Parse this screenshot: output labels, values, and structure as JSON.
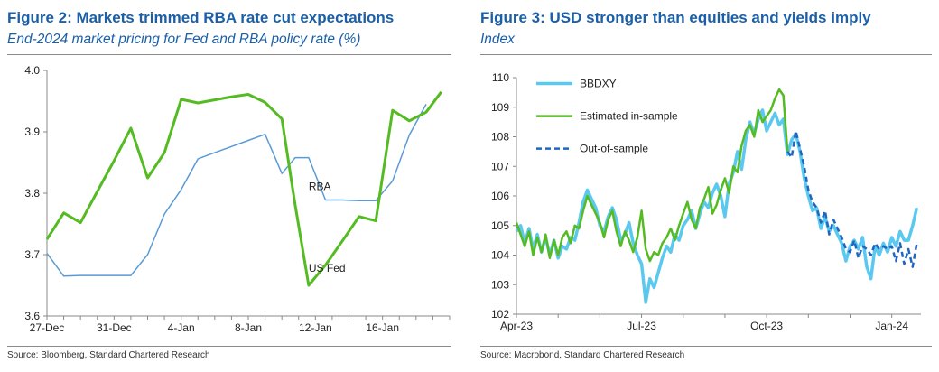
{
  "colors": {
    "title": "#1a5fa8",
    "blue": "#5b9bd5",
    "green": "#55bb22",
    "cyan": "#5bc8ef",
    "dark_blue": "#1f66c1"
  },
  "charts": [
    {
      "figure_title": "Figure 2: Markets trimmed RBA rate cut expectations",
      "subtitle": "End-2024 market pricing for Fed and RBA policy rate (%)",
      "source": "Source: Bloomberg, Standard Chartered Research"
    },
    {
      "figure_title": "Figure 3:  USD stronger than equities and yields imply",
      "subtitle": "Index",
      "source": "Source: Macrobond, Standard Chartered Research"
    }
  ],
  "chart_data": [
    {
      "type": "line",
      "title": "Figure 2: Markets trimmed RBA rate cut expectations",
      "subtitle": "End-2024 market pricing for Fed and RBA policy rate (%)",
      "xlabel": "",
      "ylabel": "",
      "x_tick_labels": [
        "27-Dec",
        "31-Dec",
        "4-Jan",
        "8-Jan",
        "12-Jan",
        "16-Jan"
      ],
      "x_tick_days": [
        0,
        4,
        8,
        12,
        16,
        20
      ],
      "ylim": [
        3.6,
        4.0
      ],
      "y_ticks": [
        "3.6",
        "3.7",
        "3.8",
        "3.9",
        "4.0"
      ],
      "y_tick_values": [
        3.6,
        3.7,
        3.8,
        3.9,
        4.0
      ],
      "grid": false,
      "series": [
        {
          "name": "RBA",
          "label": "RBA",
          "label_at": [
            15.6,
            3.805
          ],
          "color": "#5b9bd5",
          "x": [
            0,
            1,
            2,
            3,
            4,
            5,
            6,
            7,
            8,
            9,
            10,
            11,
            12,
            13,
            14,
            14.8,
            15.6,
            16.6,
            17.6,
            18.6,
            19.6,
            20.6,
            21.6,
            22.6
          ],
          "values": [
            3.702,
            3.665,
            3.666,
            3.666,
            3.666,
            3.666,
            3.7,
            3.766,
            3.806,
            3.856,
            3.866,
            3.876,
            3.886,
            3.896,
            3.832,
            3.858,
            3.858,
            3.789,
            3.789,
            3.788,
            3.788,
            3.82,
            3.895,
            3.945
          ]
        },
        {
          "name": "US Fed",
          "label": "US Fed",
          "label_at": [
            15.6,
            3.672
          ],
          "color": "#55bb22",
          "x": [
            0,
            1,
            2,
            3,
            4,
            5,
            6,
            7,
            8,
            9,
            10,
            11,
            12,
            13,
            14,
            14.8,
            15.6,
            16.6,
            17.6,
            18.6,
            19.6,
            20.6,
            21.6,
            22.6,
            23.5
          ],
          "values": [
            3.725,
            3.768,
            3.752,
            3.803,
            3.853,
            3.906,
            3.825,
            3.866,
            3.953,
            3.947,
            3.952,
            3.957,
            3.961,
            3.948,
            3.921,
            3.78,
            3.65,
            3.683,
            3.722,
            3.762,
            3.755,
            3.935,
            3.918,
            3.932,
            3.965
          ]
        }
      ]
    },
    {
      "type": "line",
      "title": "Figure 3:  USD stronger than equities and yields imply",
      "subtitle": "Index",
      "xlabel": "",
      "ylabel": "",
      "x_tick_labels": [
        "Apr-23",
        "Jul-23",
        "Oct-23",
        "Jan-24"
      ],
      "x_tick_months": [
        0,
        3,
        6,
        9
      ],
      "xlim_months": [
        0,
        9.7
      ],
      "ylim": [
        102,
        110
      ],
      "y_ticks": [
        "102",
        "103",
        "104",
        "105",
        "106",
        "107",
        "108",
        "109",
        "110"
      ],
      "y_tick_values": [
        102,
        103,
        104,
        105,
        106,
        107,
        108,
        109,
        110
      ],
      "grid": false,
      "legend_position": "top-left",
      "series": [
        {
          "name": "BBDXY",
          "label": "BBDXY",
          "color": "#5bc8ef",
          "dash": "solid",
          "x": [
            0,
            0.1,
            0.2,
            0.3,
            0.4,
            0.5,
            0.6,
            0.7,
            0.8,
            0.9,
            1.0,
            1.1,
            1.2,
            1.3,
            1.4,
            1.5,
            1.6,
            1.7,
            1.8,
            1.9,
            2.0,
            2.1,
            2.2,
            2.3,
            2.4,
            2.5,
            2.6,
            2.7,
            2.8,
            2.9,
            3.0,
            3.1,
            3.2,
            3.3,
            3.4,
            3.5,
            3.6,
            3.7,
            3.8,
            3.9,
            4.0,
            4.1,
            4.2,
            4.3,
            4.4,
            4.5,
            4.6,
            4.7,
            4.8,
            4.9,
            5.0,
            5.1,
            5.2,
            5.3,
            5.4,
            5.5,
            5.6,
            5.7,
            5.8,
            5.9,
            6.0,
            6.1,
            6.2,
            6.3,
            6.4,
            6.5,
            6.6,
            6.7,
            6.8,
            6.9,
            7.0,
            7.1,
            7.2,
            7.3,
            7.4,
            7.5,
            7.6,
            7.7,
            7.8,
            7.9,
            8.0,
            8.1,
            8.2,
            8.3,
            8.4,
            8.5,
            8.6,
            8.7,
            8.8,
            8.9,
            9.0,
            9.1,
            9.2,
            9.3,
            9.4,
            9.5,
            9.6
          ],
          "values": [
            104.8,
            105.0,
            104.4,
            104.9,
            104.2,
            104.7,
            104.1,
            104.6,
            104.0,
            104.5,
            103.9,
            104.3,
            104.2,
            104.6,
            104.5,
            105.1,
            105.8,
            106.2,
            105.9,
            105.6,
            105.0,
            104.8,
            105.3,
            105.6,
            105.2,
            104.5,
            104.7,
            105.1,
            104.4,
            104.0,
            103.7,
            102.4,
            103.2,
            102.9,
            103.4,
            103.9,
            104.3,
            104.1,
            104.7,
            104.5,
            105.0,
            105.2,
            105.5,
            104.9,
            105.4,
            105.8,
            105.6,
            106.1,
            106.4,
            106.0,
            105.3,
            106.4,
            106.8,
            107.5,
            106.9,
            107.9,
            108.5,
            108.1,
            108.6,
            108.9,
            108.2,
            108.5,
            108.8,
            108.4,
            108.6,
            107.4,
            107.9,
            108.1,
            107.5,
            106.6,
            106.0,
            105.5,
            105.6,
            104.9,
            105.3,
            104.8,
            105.0,
            104.7,
            104.4,
            103.8,
            104.3,
            104.5,
            104.2,
            104.6,
            103.6,
            103.2,
            104.3,
            104.0,
            104.4,
            104.1,
            104.6,
            104.3,
            104.8,
            104.5,
            104.5,
            105.0,
            105.6
          ]
        },
        {
          "name": "Estimated in-sample",
          "label": "Estimated in-sample",
          "color": "#55bb22",
          "dash": "solid",
          "x": [
            0,
            0.1,
            0.2,
            0.3,
            0.4,
            0.5,
            0.6,
            0.7,
            0.8,
            0.9,
            1.0,
            1.1,
            1.2,
            1.3,
            1.4,
            1.5,
            1.6,
            1.7,
            1.8,
            1.9,
            2.0,
            2.1,
            2.2,
            2.3,
            2.4,
            2.5,
            2.6,
            2.7,
            2.8,
            2.9,
            3.0,
            3.1,
            3.2,
            3.3,
            3.4,
            3.5,
            3.6,
            3.7,
            3.8,
            3.9,
            4.0,
            4.1,
            4.2,
            4.3,
            4.4,
            4.5,
            4.6,
            4.7,
            4.8,
            4.9,
            5.0,
            5.1,
            5.2,
            5.3,
            5.4,
            5.5,
            5.6,
            5.7,
            5.8,
            5.9,
            6.0,
            6.1,
            6.2,
            6.3,
            6.4,
            6.5
          ],
          "values": [
            105.1,
            104.7,
            104.3,
            104.8,
            104.0,
            104.6,
            104.1,
            104.7,
            103.9,
            104.5,
            104.0,
            104.6,
            104.8,
            104.4,
            105.0,
            104.9,
            105.5,
            106.0,
            105.7,
            105.4,
            105.1,
            104.6,
            105.2,
            105.5,
            104.8,
            104.3,
            104.8,
            104.5,
            104.1,
            104.6,
            105.5,
            104.2,
            103.8,
            104.1,
            104.0,
            104.4,
            104.6,
            104.9,
            104.5,
            105.0,
            105.4,
            105.8,
            105.2,
            104.9,
            105.6,
            105.9,
            106.3,
            105.4,
            105.7,
            106.2,
            106.6,
            106.1,
            107.0,
            106.8,
            107.7,
            108.2,
            108.4,
            108.0,
            108.9,
            108.5,
            108.7,
            108.9,
            109.3,
            109.6,
            109.4,
            107.5
          ],
          "legend_y": 108.7
        },
        {
          "name": "Out-of-sample",
          "label": "Out-of-sample",
          "color": "#1f66c1",
          "dash": "dashed",
          "x": [
            6.5,
            6.6,
            6.7,
            6.8,
            6.9,
            7.0,
            7.1,
            7.2,
            7.3,
            7.4,
            7.5,
            7.6,
            7.7,
            7.8,
            7.9,
            8.0,
            8.1,
            8.2,
            8.3,
            8.4,
            8.5,
            8.6,
            8.7,
            8.8,
            8.9,
            9.0,
            9.1,
            9.2,
            9.3,
            9.4,
            9.5,
            9.6
          ],
          "values": [
            107.5,
            107.3,
            108.2,
            107.6,
            107.0,
            106.2,
            105.8,
            105.6,
            105.1,
            105.5,
            104.7,
            105.2,
            104.9,
            104.6,
            104.2,
            104.1,
            104.5,
            103.9,
            104.3,
            104.2,
            104.0,
            104.4,
            104.2,
            104.3,
            104.2,
            104.3,
            103.8,
            104.4,
            103.7,
            104.2,
            103.6,
            104.4
          ]
        }
      ]
    }
  ]
}
